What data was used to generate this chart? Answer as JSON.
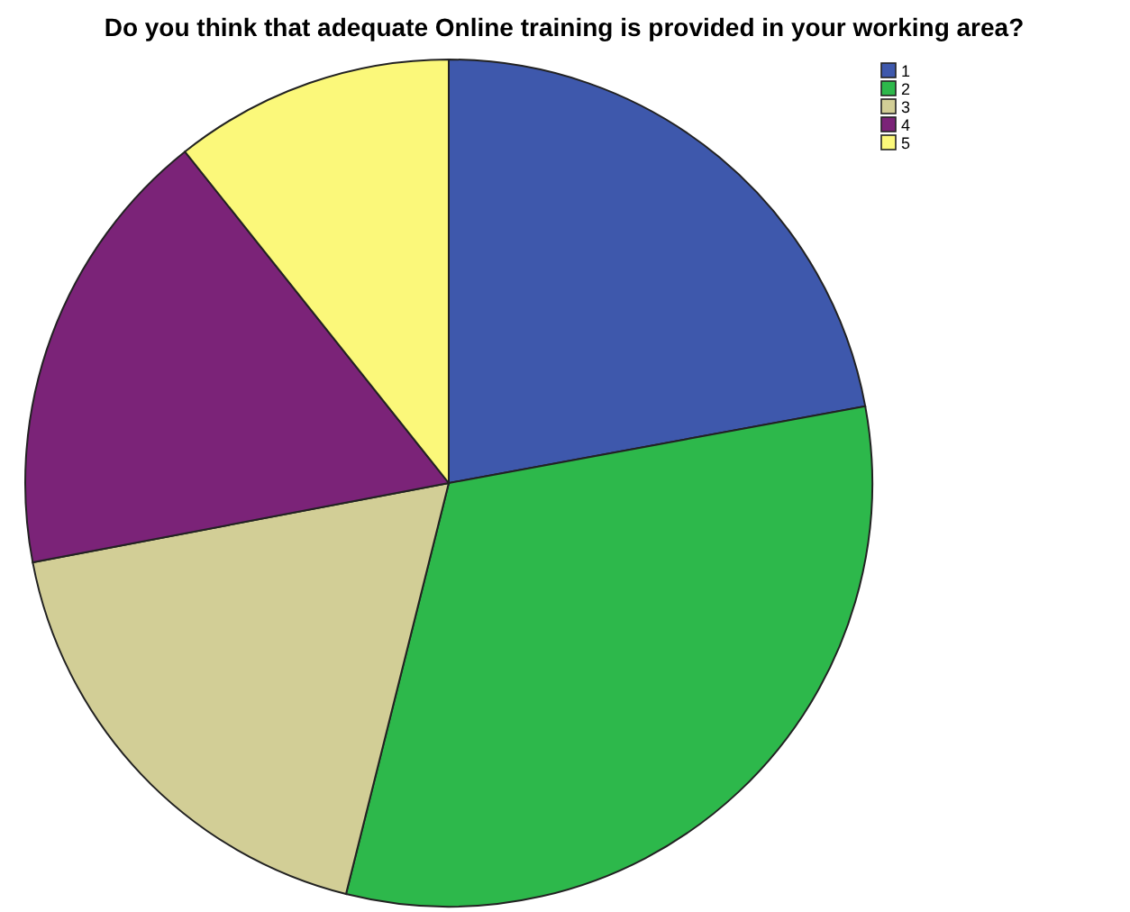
{
  "chart_data": {
    "type": "pie",
    "title": "Do you think that adequate Online training is provided in your working area?",
    "categories": [
      "1",
      "2",
      "3",
      "4",
      "5"
    ],
    "values": [
      22.1,
      31.8,
      18.1,
      17.3,
      10.7
    ],
    "colors": [
      "#3e58ac",
      "#2db84b",
      "#d2ce96",
      "#7b2378",
      "#fbf87a"
    ],
    "legend": "top right"
  }
}
